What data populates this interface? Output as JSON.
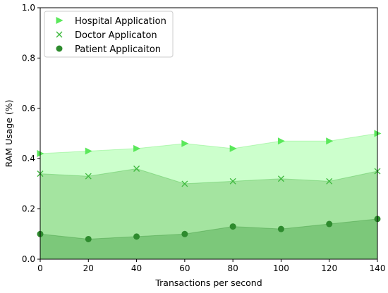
{
  "chart_data": {
    "type": "area",
    "title": "",
    "xlabel": "Transactions per second",
    "ylabel": "RAM Usage (%)",
    "xlim": [
      0,
      140
    ],
    "ylim": [
      0.0,
      1.0
    ],
    "xticks": [
      0,
      20,
      40,
      60,
      80,
      100,
      120,
      140
    ],
    "yticks": [
      "0.0",
      "0.2",
      "0.4",
      "0.6",
      "0.8",
      "1.0"
    ],
    "grid": false,
    "legend_position": "top-left",
    "x": [
      0,
      20,
      40,
      60,
      80,
      100,
      120,
      140
    ],
    "series": [
      {
        "name": "Hospital Application",
        "marker": "triangle-right",
        "color": "#5ae85a",
        "fill": "#ccffcc",
        "values": [
          0.42,
          0.43,
          0.44,
          0.46,
          0.44,
          0.47,
          0.47,
          0.5
        ]
      },
      {
        "name": "Doctor Applicaton",
        "marker": "x",
        "color": "#3cb83c",
        "fill": "#a4e4a0",
        "values": [
          0.34,
          0.33,
          0.36,
          0.3,
          0.31,
          0.32,
          0.31,
          0.35
        ]
      },
      {
        "name": "Patient Applicaiton",
        "marker": "circle",
        "color": "#2e8b2e",
        "fill": "#7cc87a",
        "values": [
          0.1,
          0.08,
          0.09,
          0.1,
          0.13,
          0.12,
          0.14,
          0.16
        ]
      }
    ]
  }
}
